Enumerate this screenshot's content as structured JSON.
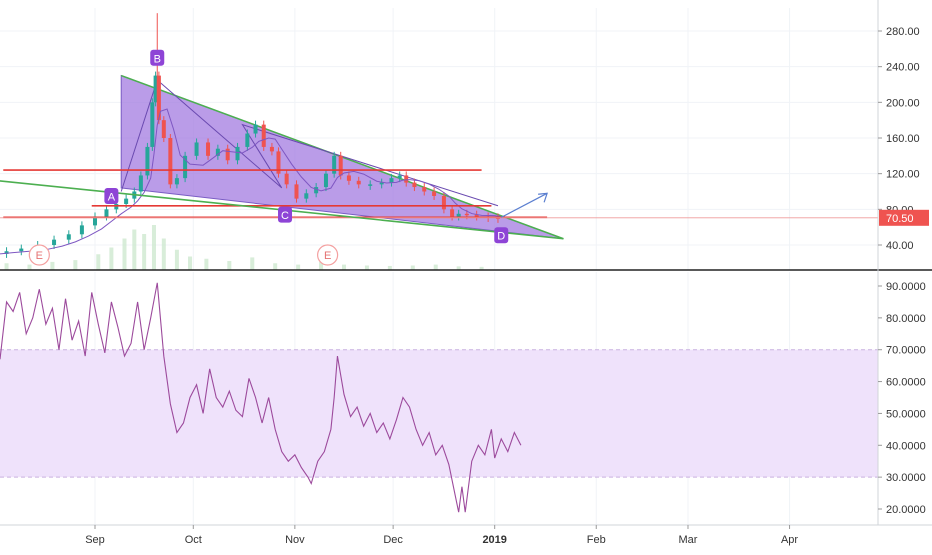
{
  "chart_data": [
    {
      "type": "candlestick",
      "panel": "price",
      "y_scale": "log",
      "ylim": [
        30,
        300
      ],
      "y_ticks": [
        "40.00",
        "80.00",
        "120.00",
        "160.00",
        "200.00",
        "240.00",
        "280.00"
      ],
      "last_price": "70.50",
      "x_ticks": [
        "Sep",
        "Oct",
        "Nov",
        "Dec",
        "2019",
        "Feb",
        "Mar",
        "Apr"
      ],
      "x_tick_dates": [
        "2018-09-01",
        "2018-10-01",
        "2018-11-01",
        "2018-12-01",
        "2019-01-01",
        "2019-02-01",
        "2019-03-01",
        "2019-04-01"
      ],
      "xlim": [
        "2018-08-03",
        "2019-04-28"
      ],
      "price_close_path": [
        [
          "2018-08-03",
          30
        ],
        [
          "2018-08-07",
          33
        ],
        [
          "2018-08-12",
          36
        ],
        [
          "2018-08-17",
          40
        ],
        [
          "2018-08-22",
          46
        ],
        [
          "2018-08-26",
          52
        ],
        [
          "2018-08-30",
          62
        ],
        [
          "2018-09-03",
          72
        ],
        [
          "2018-09-06",
          80
        ],
        [
          "2018-09-09",
          86
        ],
        [
          "2018-09-12",
          92
        ],
        [
          "2018-09-14",
          100
        ],
        [
          "2018-09-16",
          118
        ],
        [
          "2018-09-18",
          150
        ],
        [
          "2018-09-19",
          200
        ],
        [
          "2018-09-20",
          230
        ],
        [
          "2018-09-21",
          180
        ],
        [
          "2018-09-23",
          160
        ],
        [
          "2018-09-25",
          108
        ],
        [
          "2018-09-27",
          115
        ],
        [
          "2018-09-30",
          140
        ],
        [
          "2018-10-04",
          155
        ],
        [
          "2018-10-07",
          140
        ],
        [
          "2018-10-10",
          148
        ],
        [
          "2018-10-13",
          135
        ],
        [
          "2018-10-16",
          150
        ],
        [
          "2018-10-19",
          165
        ],
        [
          "2018-10-21",
          175
        ],
        [
          "2018-10-24",
          150
        ],
        [
          "2018-10-26",
          145
        ],
        [
          "2018-10-28",
          120
        ],
        [
          "2018-10-31",
          108
        ],
        [
          "2018-11-03",
          92
        ],
        [
          "2018-11-06",
          98
        ],
        [
          "2018-11-09",
          105
        ],
        [
          "2018-11-12",
          120
        ],
        [
          "2018-11-14",
          140
        ],
        [
          "2018-11-16",
          118
        ],
        [
          "2018-11-19",
          112
        ],
        [
          "2018-11-22",
          108
        ],
        [
          "2018-11-26",
          108
        ],
        [
          "2018-11-29",
          110
        ],
        [
          "2018-12-02",
          115
        ],
        [
          "2018-12-04",
          118
        ],
        [
          "2018-12-06",
          110
        ],
        [
          "2018-12-09",
          105
        ],
        [
          "2018-12-12",
          100
        ],
        [
          "2018-12-15",
          95
        ],
        [
          "2018-12-18",
          80
        ],
        [
          "2018-12-20",
          72
        ],
        [
          "2018-12-22",
          75
        ],
        [
          "2018-12-25",
          74
        ],
        [
          "2018-12-28",
          72
        ],
        [
          "2019-01-01",
          71
        ],
        [
          "2019-01-03",
          70.5
        ]
      ],
      "volume_bars": [
        [
          "2018-08-05",
          0.15
        ],
        [
          "2018-08-12",
          0.12
        ],
        [
          "2018-08-19",
          0.18
        ],
        [
          "2018-08-26",
          0.22
        ],
        [
          "2018-09-02",
          0.35
        ],
        [
          "2018-09-06",
          0.5
        ],
        [
          "2018-09-10",
          0.7
        ],
        [
          "2018-09-13",
          0.9
        ],
        [
          "2018-09-16",
          0.8
        ],
        [
          "2018-09-19",
          1.0
        ],
        [
          "2018-09-22",
          0.7
        ],
        [
          "2018-09-26",
          0.45
        ],
        [
          "2018-09-30",
          0.3
        ],
        [
          "2018-10-05",
          0.25
        ],
        [
          "2018-10-12",
          0.2
        ],
        [
          "2018-10-19",
          0.28
        ],
        [
          "2018-10-26",
          0.15
        ],
        [
          "2018-11-02",
          0.12
        ],
        [
          "2018-11-09",
          0.18
        ],
        [
          "2018-11-16",
          0.12
        ],
        [
          "2018-11-23",
          0.1
        ],
        [
          "2018-11-30",
          0.09
        ],
        [
          "2018-12-07",
          0.1
        ],
        [
          "2018-12-14",
          0.12
        ],
        [
          "2018-12-21",
          0.08
        ],
        [
          "2018-12-28",
          0.07
        ]
      ],
      "horizontal_lines": [
        {
          "y": 124,
          "from": "2018-08-04",
          "to": "2018-12-28",
          "color": "#e53935"
        },
        {
          "y": 84,
          "from": "2018-08-31",
          "to": "2018-12-31",
          "color": "#e53935"
        },
        {
          "y": 71,
          "from": "2018-08-04",
          "to": "2019-01-17",
          "color": "#e53935"
        }
      ],
      "green_trendline": {
        "from": [
          "2018-07-31",
          113
        ],
        "to": [
          "2019-01-22",
          47
        ],
        "color": "#4caf50"
      },
      "triangle": {
        "points": [
          [
            "2018-09-09",
            230
          ],
          [
            "2018-09-09",
            104
          ],
          [
            "2019-01-22",
            47
          ]
        ],
        "fill": "#a37be0",
        "stroke": "#4caf50"
      },
      "wave_path": [
        [
          "2018-09-09",
          100
        ],
        [
          "2018-09-20",
          225
        ],
        [
          "2018-10-28",
          104
        ],
        [
          "2018-10-16",
          175
        ],
        [
          "2019-01-02",
          84
        ]
      ],
      "projection_arrow": {
        "from": [
          "2019-01-03",
          71
        ],
        "to": [
          "2019-01-17",
          98
        ],
        "color": "#5b7fd0"
      },
      "point_labels": [
        {
          "text": "A",
          "x": "2018-09-06",
          "y": 95
        },
        {
          "text": "B",
          "x": "2018-09-20",
          "y": 250
        },
        {
          "text": "C",
          "x": "2018-10-29",
          "y": 74
        },
        {
          "text": "D",
          "x": "2019-01-03",
          "y": 51
        }
      ],
      "event_markers": [
        {
          "text": "E",
          "x": "2018-08-15"
        },
        {
          "text": "E",
          "x": "2018-11-11"
        }
      ],
      "colors": {
        "up": "#26a69a",
        "down": "#ef5350",
        "last_price_badge": "#ef5350",
        "ma": "#7e57c2"
      }
    },
    {
      "type": "line",
      "panel": "rsi",
      "ylim": [
        15,
        92
      ],
      "y_ticks": [
        "20.0000",
        "30.0000",
        "40.0000",
        "50.0000",
        "60.0000",
        "70.0000",
        "80.0000",
        "90.0000"
      ],
      "band": [
        30,
        70
      ],
      "series": [
        {
          "color": "#9c4a9c",
          "points": [
            [
              "2018-08-03",
              67
            ],
            [
              "2018-08-05",
              85
            ],
            [
              "2018-08-07",
              82
            ],
            [
              "2018-08-09",
              88
            ],
            [
              "2018-08-11",
              75
            ],
            [
              "2018-08-13",
              80
            ],
            [
              "2018-08-15",
              89
            ],
            [
              "2018-08-17",
              78
            ],
            [
              "2018-08-19",
              83
            ],
            [
              "2018-08-21",
              70
            ],
            [
              "2018-08-23",
              86
            ],
            [
              "2018-08-25",
              73
            ],
            [
              "2018-08-27",
              79
            ],
            [
              "2018-08-29",
              68
            ],
            [
              "2018-08-31",
              88
            ],
            [
              "2018-09-02",
              78
            ],
            [
              "2018-09-04",
              69
            ],
            [
              "2018-09-06",
              85
            ],
            [
              "2018-09-08",
              77
            ],
            [
              "2018-09-10",
              68
            ],
            [
              "2018-09-12",
              72
            ],
            [
              "2018-09-14",
              85
            ],
            [
              "2018-09-16",
              70
            ],
            [
              "2018-09-18",
              80
            ],
            [
              "2018-09-20",
              91
            ],
            [
              "2018-09-22",
              68
            ],
            [
              "2018-09-24",
              53
            ],
            [
              "2018-09-26",
              44
            ],
            [
              "2018-09-28",
              47
            ],
            [
              "2018-09-30",
              55
            ],
            [
              "2018-10-02",
              59
            ],
            [
              "2018-10-04",
              50
            ],
            [
              "2018-10-06",
              64
            ],
            [
              "2018-10-08",
              55
            ],
            [
              "2018-10-10",
              52
            ],
            [
              "2018-10-12",
              57
            ],
            [
              "2018-10-14",
              51
            ],
            [
              "2018-10-16",
              49
            ],
            [
              "2018-10-18",
              61
            ],
            [
              "2018-10-20",
              55
            ],
            [
              "2018-10-22",
              47
            ],
            [
              "2018-10-24",
              55
            ],
            [
              "2018-10-26",
              45
            ],
            [
              "2018-10-28",
              38
            ],
            [
              "2018-10-30",
              35
            ],
            [
              "2018-11-01",
              37
            ],
            [
              "2018-11-03",
              33
            ],
            [
              "2018-11-05",
              30
            ],
            [
              "2018-11-06",
              28
            ],
            [
              "2018-11-08",
              35
            ],
            [
              "2018-11-10",
              38
            ],
            [
              "2018-11-12",
              45
            ],
            [
              "2018-11-13",
              55
            ],
            [
              "2018-11-14",
              68
            ],
            [
              "2018-11-16",
              56
            ],
            [
              "2018-11-18",
              49
            ],
            [
              "2018-11-20",
              52
            ],
            [
              "2018-11-22",
              46
            ],
            [
              "2018-11-24",
              50
            ],
            [
              "2018-11-26",
              44
            ],
            [
              "2018-11-28",
              47
            ],
            [
              "2018-11-30",
              42
            ],
            [
              "2018-12-02",
              48
            ],
            [
              "2018-12-04",
              55
            ],
            [
              "2018-12-06",
              52
            ],
            [
              "2018-12-08",
              45
            ],
            [
              "2018-12-10",
              40
            ],
            [
              "2018-12-12",
              44
            ],
            [
              "2018-12-14",
              37
            ],
            [
              "2018-12-16",
              40
            ],
            [
              "2018-12-18",
              34
            ],
            [
              "2018-12-20",
              24
            ],
            [
              "2018-12-21",
              19
            ],
            [
              "2018-12-22",
              27
            ],
            [
              "2018-12-23",
              19
            ],
            [
              "2018-12-25",
              35
            ],
            [
              "2018-12-27",
              40
            ],
            [
              "2018-12-29",
              37
            ],
            [
              "2018-12-31",
              45
            ],
            [
              "2019-01-01",
              36
            ],
            [
              "2019-01-03",
              42
            ],
            [
              "2019-01-05",
              38
            ],
            [
              "2019-01-07",
              44
            ],
            [
              "2019-01-09",
              40
            ]
          ]
        }
      ],
      "colors": {
        "band_fill": "#efe2fb",
        "band_line": "#c9b0e0"
      }
    }
  ]
}
